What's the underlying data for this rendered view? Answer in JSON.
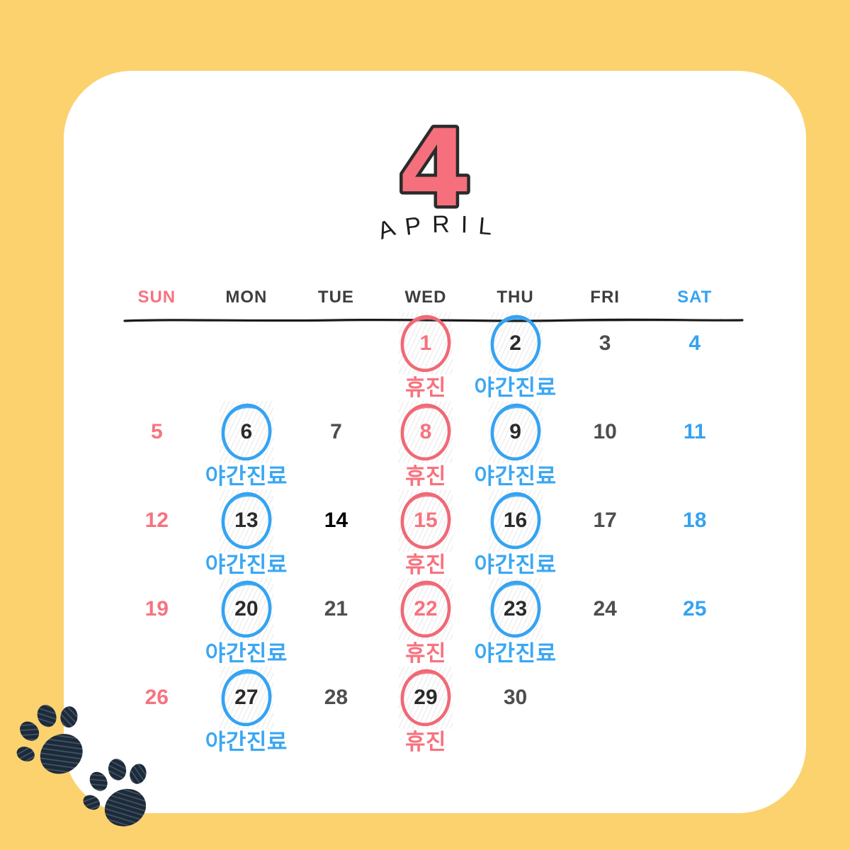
{
  "page": {
    "background_color": "#FBD26E",
    "card_color": "#FFFFFF"
  },
  "colors": {
    "pink": "#F6737F",
    "red_circle": "#F06976",
    "blue": "#35A3F1",
    "gray_number": "#4E4E4E",
    "black_number": "#000000",
    "paw_navy": "#1C2B3B"
  },
  "header": {
    "month_number": "4",
    "month_name": "APRIL"
  },
  "weekday_headers": [
    {
      "label": "SUN",
      "style": "pink"
    },
    {
      "label": "MON",
      "style": "dark"
    },
    {
      "label": "TUE",
      "style": "dark"
    },
    {
      "label": "WED",
      "style": "dark"
    },
    {
      "label": "THU",
      "style": "dark"
    },
    {
      "label": "FRI",
      "style": "dark"
    },
    {
      "label": "SAT",
      "style": "blue"
    }
  ],
  "calendar": {
    "weeks": [
      [
        {
          "day": "",
          "num_style": "gray",
          "circle": "",
          "label": "",
          "label_style": ""
        },
        {
          "day": "",
          "num_style": "gray",
          "circle": "",
          "label": "",
          "label_style": ""
        },
        {
          "day": "",
          "num_style": "gray",
          "circle": "",
          "label": "",
          "label_style": ""
        },
        {
          "day": "1",
          "num_style": "pink",
          "circle": "red",
          "label": "휴진",
          "label_style": "pink"
        },
        {
          "day": "2",
          "num_style": "dark",
          "circle": "blue",
          "label": "야간진료",
          "label_style": "blue"
        },
        {
          "day": "3",
          "num_style": "gray",
          "circle": "",
          "label": "",
          "label_style": ""
        },
        {
          "day": "4",
          "num_style": "blue",
          "circle": "",
          "label": "",
          "label_style": ""
        }
      ],
      [
        {
          "day": "5",
          "num_style": "pink",
          "circle": "",
          "label": "",
          "label_style": ""
        },
        {
          "day": "6",
          "num_style": "dark",
          "circle": "blue",
          "label": "야간진료",
          "label_style": "blue"
        },
        {
          "day": "7",
          "num_style": "gray",
          "circle": "",
          "label": "",
          "label_style": ""
        },
        {
          "day": "8",
          "num_style": "pink",
          "circle": "red",
          "label": "휴진",
          "label_style": "pink"
        },
        {
          "day": "9",
          "num_style": "dark",
          "circle": "blue",
          "label": "야간진료",
          "label_style": "blue"
        },
        {
          "day": "10",
          "num_style": "gray",
          "circle": "",
          "label": "",
          "label_style": ""
        },
        {
          "day": "11",
          "num_style": "blue",
          "circle": "",
          "label": "",
          "label_style": ""
        }
      ],
      [
        {
          "day": "12",
          "num_style": "pink",
          "circle": "",
          "label": "",
          "label_style": ""
        },
        {
          "day": "13",
          "num_style": "dark",
          "circle": "blue",
          "label": "야간진료",
          "label_style": "blue"
        },
        {
          "day": "14",
          "num_style": "black",
          "circle": "",
          "label": "",
          "label_style": ""
        },
        {
          "day": "15",
          "num_style": "pink",
          "circle": "red",
          "label": "휴진",
          "label_style": "pink"
        },
        {
          "day": "16",
          "num_style": "dark",
          "circle": "blue",
          "label": "야간진료",
          "label_style": "blue"
        },
        {
          "day": "17",
          "num_style": "gray",
          "circle": "",
          "label": "",
          "label_style": ""
        },
        {
          "day": "18",
          "num_style": "blue",
          "circle": "",
          "label": "",
          "label_style": ""
        }
      ],
      [
        {
          "day": "19",
          "num_style": "pink",
          "circle": "",
          "label": "",
          "label_style": ""
        },
        {
          "day": "20",
          "num_style": "dark",
          "circle": "blue",
          "label": "야간진료",
          "label_style": "blue"
        },
        {
          "day": "21",
          "num_style": "gray",
          "circle": "",
          "label": "",
          "label_style": ""
        },
        {
          "day": "22",
          "num_style": "pink",
          "circle": "red",
          "label": "휴진",
          "label_style": "pink"
        },
        {
          "day": "23",
          "num_style": "dark",
          "circle": "blue",
          "label": "야간진료",
          "label_style": "blue"
        },
        {
          "day": "24",
          "num_style": "gray",
          "circle": "",
          "label": "",
          "label_style": ""
        },
        {
          "day": "25",
          "num_style": "blue",
          "circle": "",
          "label": "",
          "label_style": ""
        }
      ],
      [
        {
          "day": "26",
          "num_style": "pink",
          "circle": "",
          "label": "",
          "label_style": ""
        },
        {
          "day": "27",
          "num_style": "dark",
          "circle": "blue",
          "label": "야간진료",
          "label_style": "blue"
        },
        {
          "day": "28",
          "num_style": "gray",
          "circle": "",
          "label": "",
          "label_style": ""
        },
        {
          "day": "29",
          "num_style": "dark",
          "circle": "red",
          "label": "휴진",
          "label_style": "pink"
        },
        {
          "day": "30",
          "num_style": "gray",
          "circle": "",
          "label": "",
          "label_style": ""
        },
        {
          "day": "",
          "num_style": "gray",
          "circle": "",
          "label": "",
          "label_style": ""
        },
        {
          "day": "",
          "num_style": "gray",
          "circle": "",
          "label": "",
          "label_style": ""
        }
      ]
    ]
  }
}
